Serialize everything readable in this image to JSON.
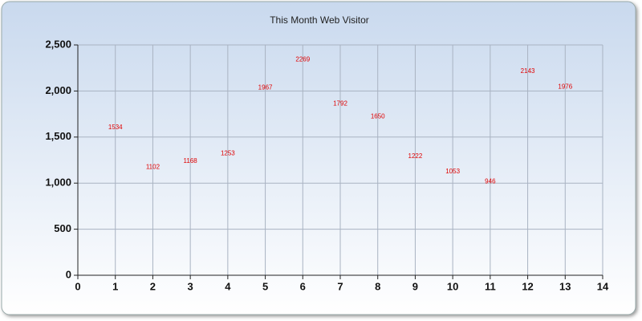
{
  "chart_data": {
    "type": "scatter",
    "title": "This Month Web Visitor",
    "x": [
      1,
      2,
      3,
      4,
      5,
      6,
      7,
      8,
      9,
      10,
      11,
      12,
      13
    ],
    "values": [
      1534,
      1102,
      1168,
      1253,
      1967,
      2269,
      1792,
      1650,
      1222,
      1053,
      946,
      2143,
      1976
    ],
    "color": "#e00000",
    "xlim": [
      0,
      14
    ],
    "xticks": [
      0,
      1,
      2,
      3,
      4,
      5,
      6,
      7,
      8,
      9,
      10,
      11,
      12,
      13,
      14
    ],
    "ylim": [
      0,
      2500
    ],
    "yticks": [
      0,
      500,
      {
        "value": 1000,
        "label": "1,000"
      },
      {
        "value": 1500,
        "label": "1,500"
      },
      {
        "value": 2000,
        "label": "2,000"
      },
      {
        "value": 2500,
        "label": "2,500"
      }
    ],
    "grid": true
  }
}
